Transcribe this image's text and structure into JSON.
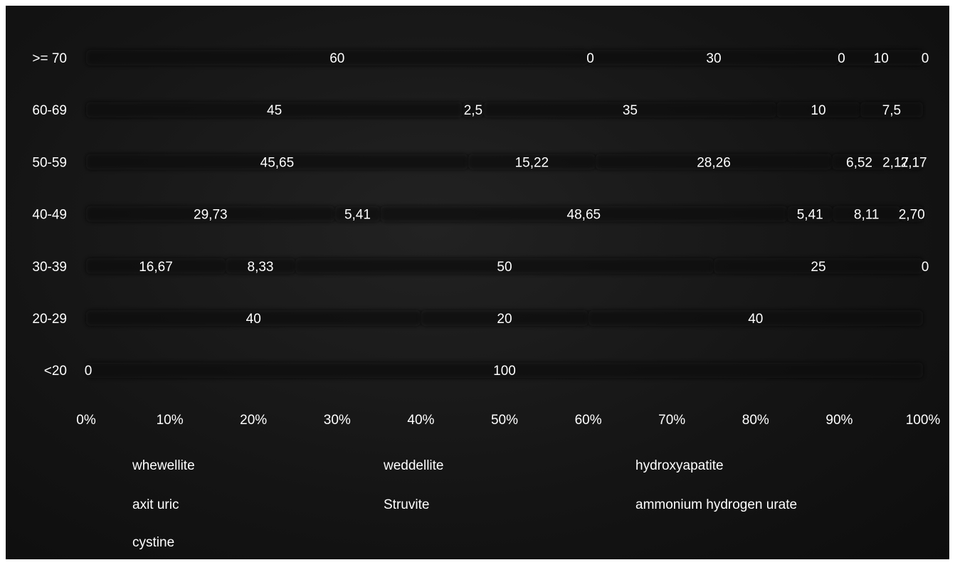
{
  "chart_data": {
    "type": "bar",
    "orientation": "horizontal",
    "stacked": "percent",
    "grid": false,
    "legend_position": "bottom",
    "categories": [
      ">= 70",
      "60-69",
      "50-59",
      "40-49",
      "30-39",
      "20-29",
      "<20"
    ],
    "series": [
      {
        "name": "whewellite",
        "values": [
          "60",
          "45",
          "45,65",
          "29,73",
          "16,67",
          "40",
          "0"
        ],
        "numeric": [
          60,
          45,
          45.65,
          29.73,
          16.67,
          40,
          0
        ]
      },
      {
        "name": "weddellite",
        "values": [
          "",
          "",
          "",
          "5,41",
          "8,33",
          "",
          ""
        ],
        "numeric": [
          0,
          0,
          0,
          5.41,
          8.33,
          0,
          0
        ]
      },
      {
        "name": "hydroxyapatite",
        "values": [
          "0",
          "2,5",
          "15,22",
          "48,65",
          "50",
          "20",
          "100"
        ],
        "numeric": [
          0,
          2.5,
          15.22,
          48.65,
          50,
          20,
          100
        ]
      },
      {
        "name": "axit uric",
        "values": [
          "30",
          "35",
          "28,26",
          "",
          "",
          "40",
          ""
        ],
        "numeric": [
          30,
          35,
          28.26,
          0,
          0,
          40,
          0
        ]
      },
      {
        "name": "Struvite",
        "values": [
          "0",
          "10",
          "6,52",
          "5,41",
          "25",
          "",
          ""
        ],
        "numeric": [
          0,
          10,
          6.52,
          5.41,
          25,
          0,
          0
        ]
      },
      {
        "name": "ammonium hydrogen urate",
        "values": [
          "10",
          "7,5",
          "2,17",
          "8,11",
          "",
          "",
          ""
        ],
        "numeric": [
          10,
          7.5,
          2.17,
          8.11,
          0,
          0,
          0
        ]
      },
      {
        "name": "cystine",
        "values": [
          "0",
          "",
          "2,17",
          "2,70",
          "0",
          "",
          ""
        ],
        "numeric": [
          0,
          0,
          2.17,
          2.7,
          0,
          0,
          0
        ]
      }
    ],
    "x_ticks": [
      "0%",
      "10%",
      "20%",
      "30%",
      "40%",
      "50%",
      "60%",
      "70%",
      "80%",
      "90%",
      "100%"
    ],
    "xlim": [
      0,
      100
    ],
    "colors": {
      "background": "#161616",
      "text": "#ffffff",
      "bar_fill": "#0b0b0b"
    }
  }
}
